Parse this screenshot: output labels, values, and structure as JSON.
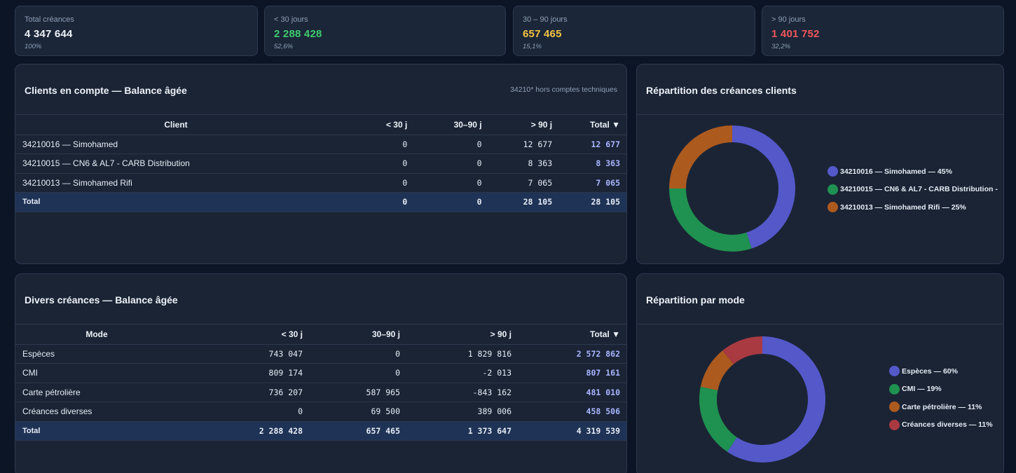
{
  "kpis": [
    {
      "label": "Total créances",
      "value": "4 347 644",
      "pct": "100%",
      "color": "#eef2f8"
    },
    {
      "label": "< 30 jours",
      "value": "2 288 428",
      "pct": "52,6%",
      "color": "#3ecb6f"
    },
    {
      "label": "30 – 90 jours",
      "value": "657 465",
      "pct": "15,1%",
      "color": "#f4c544"
    },
    {
      "label": "> 90 jours",
      "value": "1 401 752",
      "pct": "32,2%",
      "color": "#f0575a"
    }
  ],
  "clients": {
    "title": "Clients en compte — Balance âgée",
    "note": "34210* hors comptes techniques",
    "columns": [
      "Client",
      "< 30 j",
      "30–90 j",
      "> 90 j",
      "Total ▼"
    ],
    "rows": [
      [
        "34210016 — Simohamed",
        "0",
        "0",
        "12 677",
        "12 677"
      ],
      [
        "34210015 — CN6 & AL7 - CARB Distribution",
        "0",
        "0",
        "8 363",
        "8 363"
      ],
      [
        "34210013 — Simohamed Rifi",
        "0",
        "0",
        "7 065",
        "7 065"
      ]
    ],
    "total": [
      "Total",
      "0",
      "0",
      "28 105",
      "28 105"
    ]
  },
  "divers": {
    "title": "Divers créances — Balance âgée",
    "columns": [
      "Mode",
      "< 30 j",
      "30–90 j",
      "> 90 j",
      "Total ▼"
    ],
    "rows": [
      [
        "Espèces",
        "743 047",
        "0",
        "1 829 816",
        "2 572 862"
      ],
      [
        "CMI",
        "809 174",
        "0",
        "-2 013",
        "807 161"
      ],
      [
        "Carte pétrolière",
        "736 207",
        "587 965",
        "-843 162",
        "481 010"
      ],
      [
        "Créances diverses",
        "0",
        "69 500",
        "389 006",
        "458 506"
      ]
    ],
    "total": [
      "Total",
      "2 288 428",
      "657 465",
      "1 373 647",
      "4 319 539"
    ]
  },
  "chart_data": [
    {
      "type": "pie",
      "title": "Répartition des créances clients",
      "categories": [
        "34210016 — Simohamed",
        "34210015 — CN6 & AL7 - CARB Distribution",
        "34210013 — Simohamed Rifi"
      ],
      "values": [
        45,
        30,
        25
      ],
      "colors": [
        "#5458c9",
        "#1f9150",
        "#ad5a1f"
      ],
      "legend": [
        "34210016 — Simohamed — 45%",
        "34210015 — CN6 & AL7 - CARB Distribution -",
        "34210013 — Simohamed Rifi — 25%"
      ],
      "legend_position": "right"
    },
    {
      "type": "pie",
      "title": "Répartition par mode",
      "categories": [
        "Espèces",
        "CMI",
        "Carte pétrolière",
        "Créances diverses"
      ],
      "values": [
        60,
        19,
        11,
        11
      ],
      "colors": [
        "#5458c9",
        "#1f9150",
        "#ad5a1f",
        "#a93a42"
      ],
      "legend": [
        "Espèces — 60%",
        "CMI — 19%",
        "Carte pétrolière — 11%",
        "Créances diverses — 11%"
      ],
      "legend_position": "right"
    }
  ]
}
